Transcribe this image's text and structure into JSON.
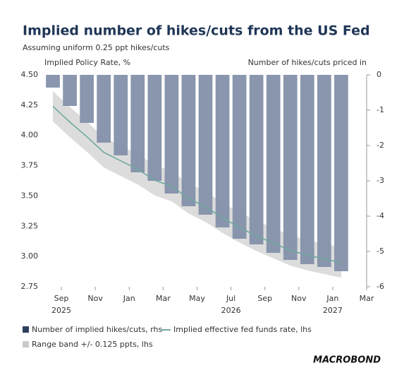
{
  "chart_data": {
    "type": "bar-line",
    "title": "Implied number of hikes/cuts from the US Fed",
    "subtitle": "Assuming uniform 0.25 ppt hikes/cuts",
    "y_label": "Implied Policy Rate, %",
    "y2_label": "Number of hikes/cuts priced in",
    "x": [
      0.5,
      1.5,
      2.5,
      3.5,
      4.5,
      5.5,
      6.5,
      7.5,
      8.5,
      9.5,
      10.5,
      11.5,
      12.5,
      13.5,
      14.5,
      15.5,
      16.5,
      17.5
    ],
    "xlim": [
      0,
      19
    ],
    "xticks": [
      {
        "value": 1,
        "label": "Sep"
      },
      {
        "value": 3,
        "label": "Nov"
      },
      {
        "value": 5,
        "label": "Jan"
      },
      {
        "value": 7,
        "label": "Mar"
      },
      {
        "value": 9,
        "label": "May"
      },
      {
        "value": 11,
        "label": "Jul"
      },
      {
        "value": 13,
        "label": "Sep"
      },
      {
        "value": 15,
        "label": "Nov"
      },
      {
        "value": 17,
        "label": "Jan"
      },
      {
        "value": 19,
        "label": "Mar"
      }
    ],
    "year_labels": [
      {
        "value": 1,
        "label": "2025"
      },
      {
        "value": 11,
        "label": "2026"
      },
      {
        "value": 17,
        "label": "2027"
      }
    ],
    "ylim": [
      2.75,
      4.5
    ],
    "yticks": [
      {
        "value": 4.5,
        "label": "4.50"
      },
      4.25,
      {
        "value": 4,
        "label": "4.00"
      },
      3.75,
      {
        "value": 3.5,
        "label": "3.50"
      },
      3.25,
      {
        "value": 3,
        "label": "3.00"
      },
      2.75
    ],
    "y2lim": [
      -6,
      0
    ],
    "y2ticks": [
      0,
      -1,
      -2,
      -3,
      -4,
      -5,
      -6
    ],
    "series": [
      {
        "name": "Number of implied hikes/cuts, rhs",
        "color": "#8390a9",
        "axis": "y2",
        "type": "bar",
        "values": [
          -0.36,
          -0.88,
          -1.36,
          -1.92,
          -2.28,
          -2.76,
          -3.0,
          -3.36,
          -3.72,
          -3.96,
          -4.32,
          -4.64,
          -4.8,
          -5.04,
          -5.24,
          -5.36,
          -5.44,
          -5.56
        ]
      },
      {
        "name": "Implied effective fed funds rate, lhs",
        "color": "#6fa89f",
        "type": "line",
        "values": [
          4.24,
          4.11,
          3.99,
          3.86,
          3.79,
          3.72,
          3.63,
          3.58,
          3.48,
          3.41,
          3.32,
          3.24,
          3.17,
          3.11,
          3.05,
          3.01,
          2.98,
          2.95
        ]
      }
    ],
    "band_name": "Range band +/- 0.125 ppts, lhs",
    "band": 0.125,
    "band_color": "#dcdcdc",
    "logo": "MACROBOND"
  }
}
